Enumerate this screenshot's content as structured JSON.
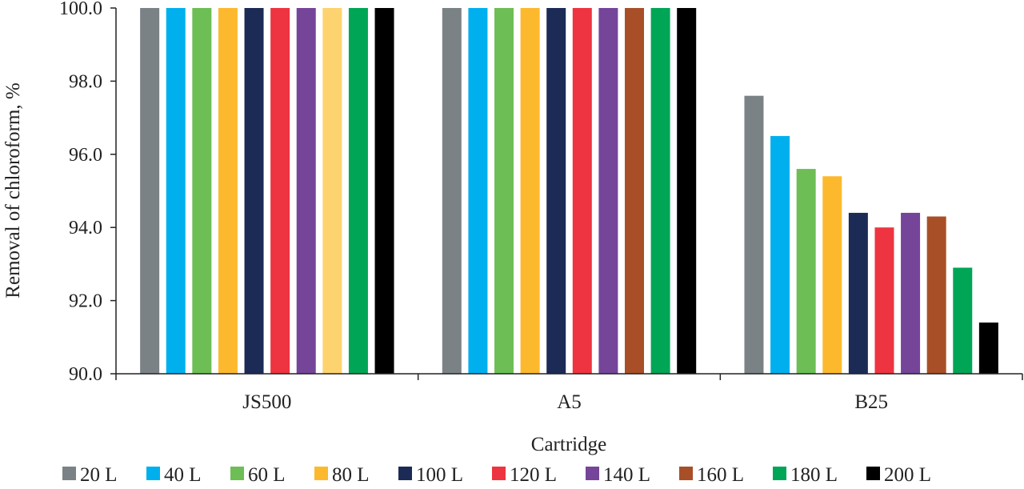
{
  "chart_data": {
    "type": "bar",
    "xlabel": "Cartridge",
    "ylabel": "Removal of chloroform, %",
    "ylim": [
      90,
      100
    ],
    "yticks": [
      "90.0",
      "92.0",
      "94.0",
      "96.0",
      "98.0",
      "100.0"
    ],
    "categories": [
      "JS500",
      "A5",
      "B25"
    ],
    "legend_position": "bottom",
    "grid": false,
    "series": [
      {
        "name": "20 L",
        "color": "#7B8285",
        "values": [
          100,
          100,
          97.6
        ]
      },
      {
        "name": "40 L",
        "color": "#00B0EE",
        "values": [
          100,
          100,
          96.5
        ]
      },
      {
        "name": "60 L",
        "color": "#6DBE55",
        "values": [
          100,
          100,
          95.6
        ]
      },
      {
        "name": "80 L",
        "color": "#FDB92E",
        "values": [
          100,
          100,
          95.4
        ]
      },
      {
        "name": "100 L",
        "color": "#1C2B55",
        "values": [
          100,
          100,
          94.4
        ]
      },
      {
        "name": "120 L",
        "color": "#EE3440",
        "values": [
          100,
          100,
          94.0
        ]
      },
      {
        "name": "140 L",
        "color": "#75459A",
        "values": [
          100,
          100,
          94.4
        ]
      },
      {
        "name": "160 L",
        "color": "#A84F27",
        "values": [
          100,
          100,
          94.3
        ],
        "bar_colors": [
          "#FDD36F",
          "#A84F27",
          "#A84F27"
        ]
      },
      {
        "name": "180 L",
        "color": "#00A556",
        "values": [
          100,
          100,
          92.9
        ]
      },
      {
        "name": "200 L",
        "color": "#000000",
        "values": [
          100,
          100,
          91.4
        ]
      }
    ]
  }
}
